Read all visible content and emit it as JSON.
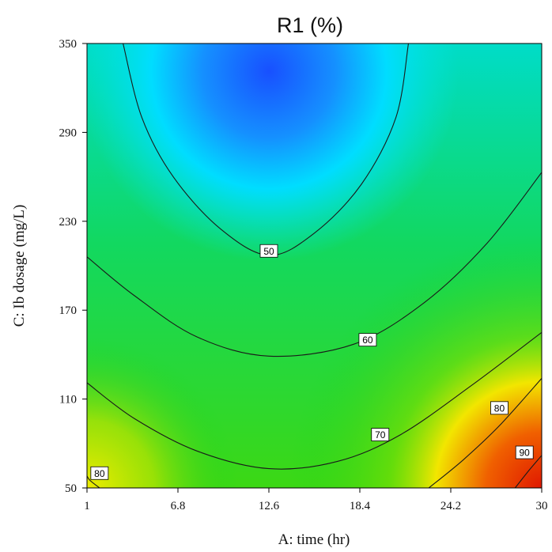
{
  "chart_data": {
    "type": "contour",
    "title": "R1 (%)",
    "xlabel": "A: time (hr)",
    "ylabel": "C: Ib dosage (mg/L)",
    "xlim": [
      1,
      30
    ],
    "ylim": [
      50,
      350
    ],
    "x_ticks": [
      "1",
      "6.8",
      "12.6",
      "18.4",
      "24.2",
      "30"
    ],
    "y_ticks": [
      "50",
      "110",
      "170",
      "230",
      "290",
      "350"
    ],
    "color_scale": [
      "#1e5aff",
      "#00e6ff",
      "#10d020",
      "#f0ee00",
      "#e02000"
    ],
    "contours": [
      {
        "level": "50",
        "points": [
          [
            3.3,
            350
          ],
          [
            4.5,
            300
          ],
          [
            6.5,
            260
          ],
          [
            9.5,
            225
          ],
          [
            12.6,
            207
          ],
          [
            15.5,
            222
          ],
          [
            18.5,
            255
          ],
          [
            20.7,
            300
          ],
          [
            21.5,
            350
          ]
        ],
        "label_at": [
          12.6,
          210
        ]
      },
      {
        "level": "60",
        "points": [
          [
            1,
            206
          ],
          [
            4,
            180
          ],
          [
            8,
            152
          ],
          [
            12.6,
            139
          ],
          [
            18,
            147
          ],
          [
            22.5,
            175
          ],
          [
            26.5,
            215
          ],
          [
            30,
            263
          ]
        ],
        "label_at": [
          18.9,
          150
        ]
      },
      {
        "level": "70",
        "points": [
          [
            1,
            121
          ],
          [
            4,
            97
          ],
          [
            8,
            75
          ],
          [
            12.6,
            63
          ],
          [
            17,
            68
          ],
          [
            21,
            86
          ],
          [
            25.5,
            119
          ],
          [
            30,
            155
          ]
        ],
        "label_at": [
          19.7,
          86
        ]
      },
      {
        "level": "80",
        "points": [
          [
            1.8,
            50
          ],
          [
            1.2,
            55
          ],
          [
            1,
            58
          ]
        ],
        "label_at": [
          1.8,
          60
        ]
      },
      {
        "level": "80",
        "points": [
          [
            22.8,
            50
          ],
          [
            25,
            69
          ],
          [
            27.3,
            92
          ],
          [
            30,
            124
          ]
        ],
        "label_at": [
          27.3,
          104
        ]
      },
      {
        "level": "90",
        "points": [
          [
            28.3,
            50
          ],
          [
            29.2,
            62
          ],
          [
            30,
            72
          ]
        ],
        "label_at": [
          28.9,
          74
        ]
      }
    ]
  }
}
